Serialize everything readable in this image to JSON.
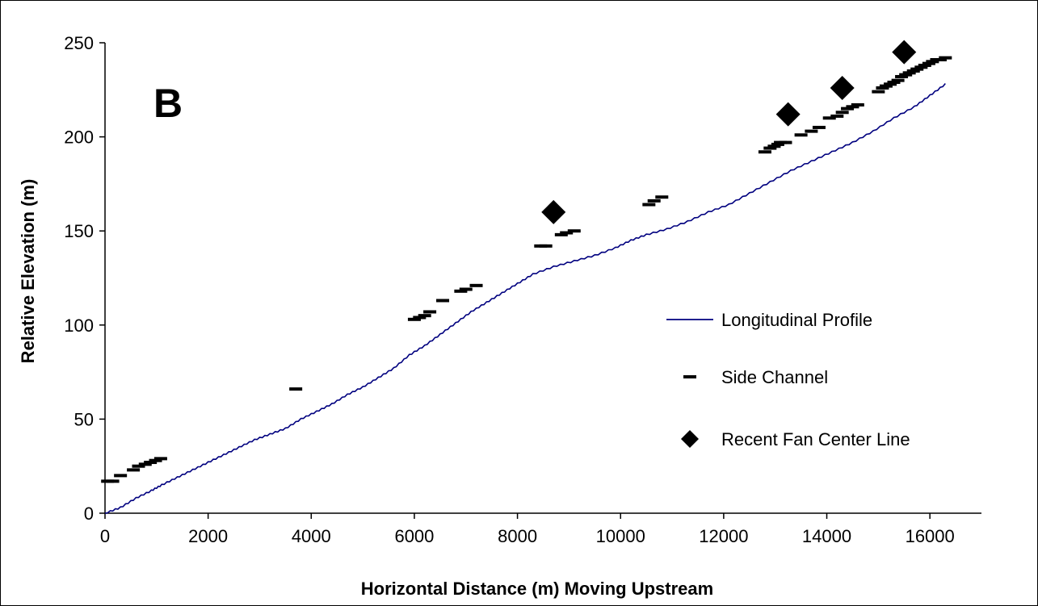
{
  "chart_data": {
    "type": "line",
    "panel_label": "B",
    "xlabel": "Horizontal Distance (m) Moving Upstream",
    "ylabel": "Relative Elevation (m)",
    "xlim": [
      0,
      17000
    ],
    "ylim": [
      0,
      250
    ],
    "x_ticks": [
      "0",
      "2000",
      "4000",
      "6000",
      "8000",
      "10000",
      "12000",
      "14000",
      "16000"
    ],
    "y_ticks": [
      "0",
      "50",
      "100",
      "150",
      "200",
      "250"
    ],
    "legend_position": "right",
    "colors": {
      "profile": "#00007f",
      "markers": "#000000"
    },
    "series": [
      {
        "name": "Longitudinal Profile",
        "style": "line",
        "x": [
          0,
          300,
          600,
          900,
          1100,
          1400,
          1700,
          2000,
          2300,
          2600,
          2900,
          3200,
          3500,
          3800,
          4100,
          4400,
          4700,
          5000,
          5300,
          5600,
          5900,
          6200,
          6500,
          6800,
          7100,
          7400,
          7700,
          8000,
          8300,
          8700,
          9100,
          9500,
          9900,
          10200,
          10500,
          10900,
          11300,
          11700,
          12100,
          12500,
          12900,
          13300,
          13700,
          14100,
          14500,
          14900,
          15300,
          15700,
          16000,
          16300
        ],
        "y": [
          0,
          3,
          8,
          12,
          15,
          19,
          23,
          27,
          31,
          35,
          39,
          42,
          45,
          50,
          54,
          58,
          63,
          67,
          72,
          77,
          84,
          89,
          95,
          101,
          107,
          112,
          117,
          122,
          127,
          131,
          134,
          137,
          141,
          145,
          148,
          151,
          155,
          160,
          164,
          170,
          176,
          182,
          187,
          192,
          197,
          203,
          210,
          216,
          222,
          228
        ]
      },
      {
        "name": "Side Channel",
        "style": "dash-marker",
        "x": [
          50,
          150,
          300,
          550,
          650,
          780,
          880,
          980,
          1080,
          3700,
          6000,
          6100,
          6200,
          6300,
          6550,
          6900,
          7000,
          7200,
          8450,
          8550,
          8850,
          8950,
          9100,
          10550,
          10650,
          10800,
          12800,
          12900,
          12980,
          13050,
          13100,
          13200,
          13500,
          13700,
          13850,
          14050,
          14200,
          14300,
          14400,
          14500,
          14600,
          15000,
          15080,
          15150,
          15230,
          15300,
          15380,
          15450,
          15530,
          15600,
          15680,
          15750,
          15830,
          15900,
          15980,
          16050,
          16130,
          16200,
          16300
        ],
        "y": [
          17,
          17,
          20,
          23,
          25,
          26,
          27,
          28,
          29,
          66,
          103,
          104,
          105,
          107,
          113,
          118,
          119,
          121,
          142,
          142,
          148,
          149,
          150,
          164,
          166,
          168,
          192,
          194,
          195,
          196,
          197,
          197,
          201,
          203,
          205,
          210,
          211,
          213,
          215,
          216,
          217,
          224,
          226,
          227,
          228,
          229,
          230,
          232,
          233,
          234,
          235,
          236,
          237,
          238,
          239,
          240,
          241,
          241,
          242
        ]
      },
      {
        "name": "Recent Fan Center Line",
        "style": "diamond",
        "x": [
          8700,
          13250,
          14300,
          15500
        ],
        "y": [
          160,
          212,
          226,
          245
        ]
      }
    ]
  }
}
